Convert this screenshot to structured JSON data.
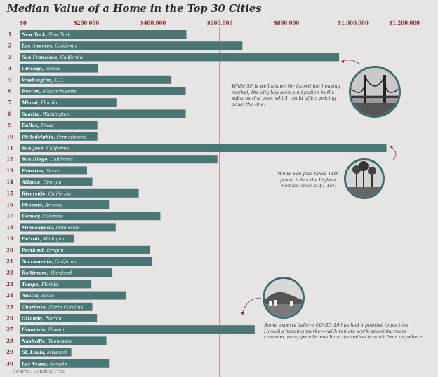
{
  "chart_data": {
    "type": "bar",
    "orientation": "horizontal",
    "title": "Median Value of a Home in the Top 30 Cities",
    "xlim": [
      0,
      1200000
    ],
    "x_tick_labels": [
      "$0",
      "$200,000",
      "$400,000",
      "$600,000",
      "$800,000",
      "$1,000,000",
      "$1,200,000"
    ],
    "x_ticks": [
      0,
      200000,
      400000,
      600000,
      800000,
      1000000,
      1200000
    ],
    "reference_line": 600000,
    "bar_color": "#4c7676",
    "accent_color": "#8a2a3a",
    "categories": [
      {
        "rank": "1",
        "city": "New York",
        "state": "New York",
        "value": 500000
      },
      {
        "rank": "2",
        "city": "Los Angeles",
        "state": "California",
        "value": 668000
      },
      {
        "rank": "3",
        "city": "San Francisco",
        "state": "California",
        "value": 958000
      },
      {
        "rank": "4",
        "city": "Chicago",
        "state": "Illinois",
        "value": 235000
      },
      {
        "rank": "5",
        "city": "Washington",
        "state": "D.C.",
        "value": 455000
      },
      {
        "rank": "6",
        "city": "Boston",
        "state": "Massachusetts",
        "value": 498000
      },
      {
        "rank": "7",
        "city": "Miami",
        "state": "Florida",
        "value": 290000
      },
      {
        "rank": "8",
        "city": "Seattle",
        "state": "Washington",
        "value": 498000
      },
      {
        "rank": "9",
        "city": "Dallas",
        "state": "Texas",
        "value": 233000
      },
      {
        "rank": "10",
        "city": "Philadelphia",
        "state": "Pennsylvania",
        "value": 233000
      },
      {
        "rank": "11",
        "city": "San Jose",
        "state": "California",
        "value": 1100000
      },
      {
        "rank": "12",
        "city": "San Diego",
        "state": "California",
        "value": 593000
      },
      {
        "rank": "13",
        "city": "Houston",
        "state": "Texas",
        "value": 202000
      },
      {
        "rank": "14",
        "city": "Atlanta",
        "state": "Georgia",
        "value": 218000
      },
      {
        "rank": "15",
        "city": "Riverside",
        "state": "California",
        "value": 357000
      },
      {
        "rank": "16",
        "city": "Phoenix",
        "state": "Arizona",
        "value": 270000
      },
      {
        "rank": "17",
        "city": "Denver",
        "state": "Colorado",
        "value": 422000
      },
      {
        "rank": "18",
        "city": "Minneapolis",
        "state": "Minnesota",
        "value": 288000
      },
      {
        "rank": "19",
        "city": "Detroit",
        "state": "Michigan",
        "value": 162000
      },
      {
        "rank": "20",
        "city": "Portland",
        "state": "Oregon",
        "value": 390000
      },
      {
        "rank": "21",
        "city": "Sacramento",
        "state": "California",
        "value": 398000
      },
      {
        "rank": "22",
        "city": "Baltimore",
        "state": "Maryland",
        "value": 278000
      },
      {
        "rank": "23",
        "city": "Tampa",
        "state": "Florida",
        "value": 215000
      },
      {
        "rank": "24",
        "city": "Austin",
        "state": "Texas",
        "value": 318000
      },
      {
        "rank": "25",
        "city": "Charlotte",
        "state": "North Carolina",
        "value": 218000
      },
      {
        "rank": "26",
        "city": "Orlando",
        "state": "Florida",
        "value": 232000
      },
      {
        "rank": "27",
        "city": "Honolulu",
        "state": "Hawaii",
        "value": 705000
      },
      {
        "rank": "28",
        "city": "Nashville",
        "state": "Tennessee",
        "value": 260000
      },
      {
        "rank": "29",
        "city": "St. Louis",
        "state": "Missouri",
        "value": 155000
      },
      {
        "rank": "30",
        "city": "Las Vegas",
        "state": "Nevada",
        "value": 270000
      }
    ],
    "annotations": [
      {
        "text": "While SF is well-known for its red hot housing market, the city has seen a migration to the suburbs this year, which could affect pricing down the line.",
        "photo": "golden-gate-bridge"
      },
      {
        "text": "While San Jose takes 11th place, it has the highest median value at $1.1M.",
        "photo": "palm-trees"
      },
      {
        "text": "Some experts believe COVID-19 has had a positive impact on Hawaii's housing market—with remote work becoming more common, many people now have the option to work from anywhere.",
        "photo": "diamond-head"
      }
    ],
    "source": "Source: LendingTree"
  }
}
